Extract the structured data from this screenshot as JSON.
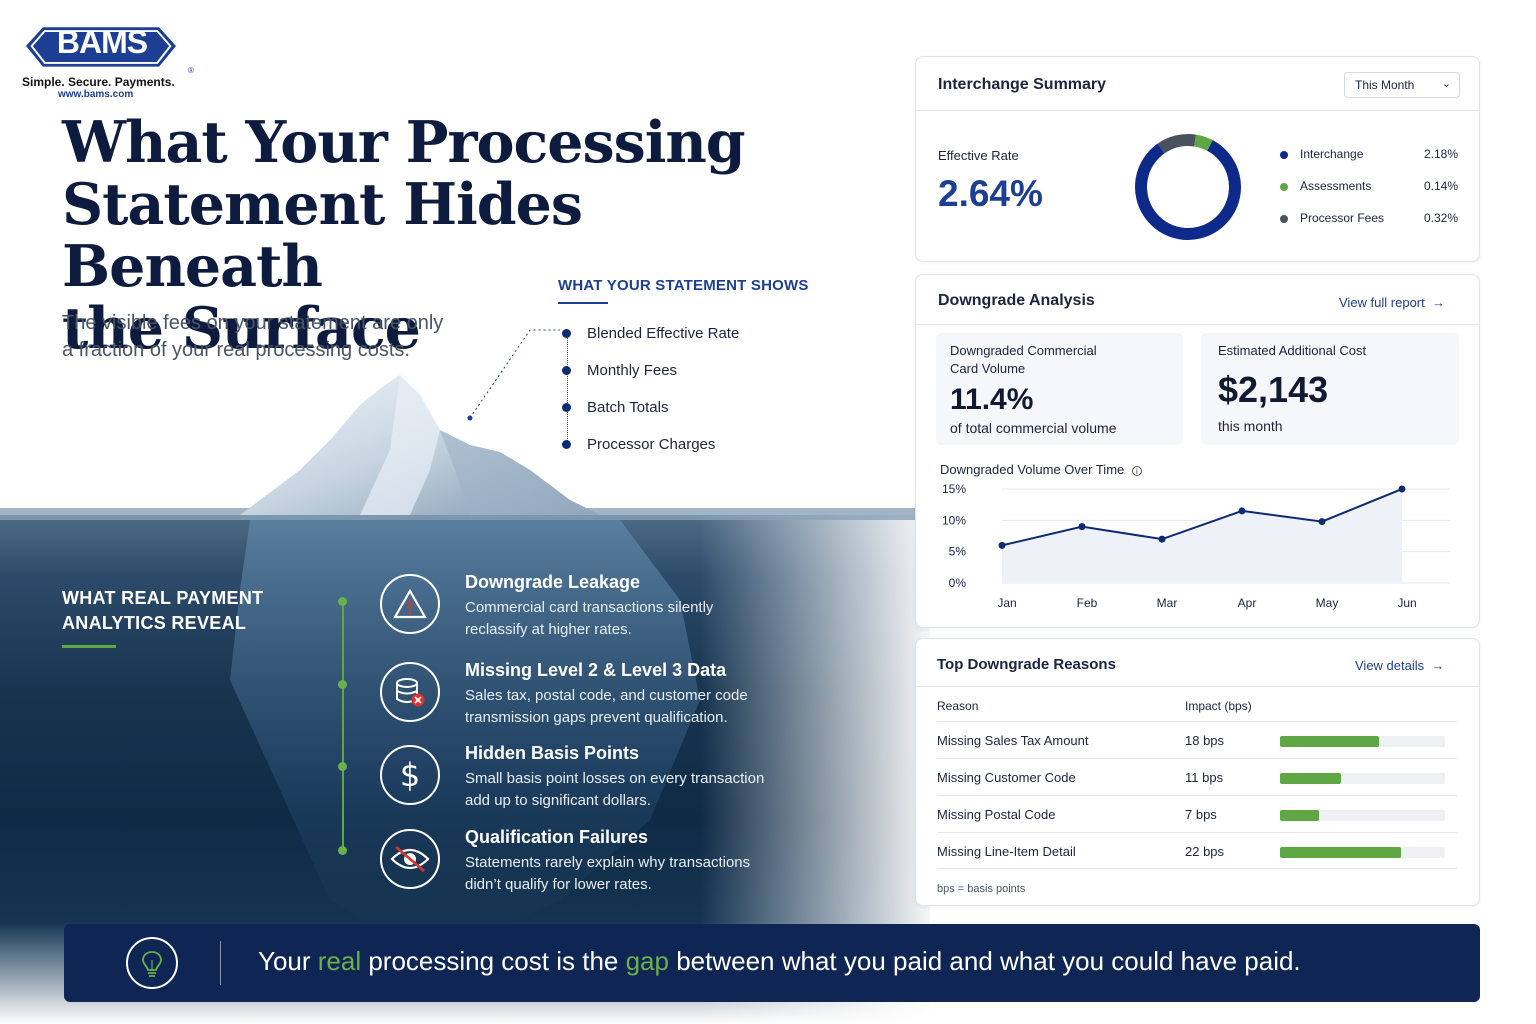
{
  "brand": {
    "logo_text": "BAMS",
    "tagline": "Simple. Secure. Payments.",
    "url": "www.bams.com",
    "registered": "®"
  },
  "headline": {
    "line1": "What Your Processing",
    "line2": "Statement Hides Beneath",
    "line3": "the Surface",
    "subhead_line1": "The visible fees on your statement are only",
    "subhead_line2": "a fraction of your real processing costs."
  },
  "statement_shows": {
    "title": "WHAT YOUR STATEMENT SHOWS",
    "items": [
      "Blended Effective Rate",
      "Monthly Fees",
      "Batch Totals",
      "Processor Charges"
    ]
  },
  "analytics_reveal": {
    "title_line1": "WHAT REAL PAYMENT",
    "title_line2": "ANALYTICS REVEAL",
    "items": [
      {
        "icon": "warning-icon",
        "title": "Downgrade Leakage",
        "desc_line1": "Commercial card transactions silently",
        "desc_line2": "reclassify at higher rates."
      },
      {
        "icon": "database-error-icon",
        "title": "Missing Level 2 & Level 3 Data",
        "desc_line1": "Sales tax, postal code, and customer code",
        "desc_line2": "transmission gaps prevent qualification."
      },
      {
        "icon": "dollar-icon",
        "title": "Hidden Basis Points",
        "desc_line1": "Small basis point losses on every transaction",
        "desc_line2": "add up to significant dollars."
      },
      {
        "icon": "eye-off-icon",
        "title": "Qualification Failures",
        "desc_line1": "Statements rarely explain why transactions",
        "desc_line2": "didn’t qualify for lower rates."
      }
    ]
  },
  "banner": {
    "icon": "lightbulb-icon",
    "part1": "Your ",
    "hl1": "real",
    "part2": " processing cost is the ",
    "hl2": "gap",
    "part3": " between what you paid and what you could have paid."
  },
  "interchange": {
    "title": "Interchange Summary",
    "period": "This Month",
    "effective_label": "Effective Rate",
    "effective_value": "2.64%",
    "legend": [
      {
        "label": "Interchange",
        "value": "2.18%",
        "color": "#0d2a8a",
        "share": 2.18
      },
      {
        "label": "Assessments",
        "value": "0.14%",
        "color": "#5fa744",
        "share": 0.14
      },
      {
        "label": "Processor Fees",
        "value": "0.32%",
        "color": "#4a5060",
        "share": 0.32
      }
    ]
  },
  "downgrade": {
    "title": "Downgrade Analysis",
    "link": "View full report",
    "volume_label_line1": "Downgraded Commercial",
    "volume_label_line2": "Card Volume",
    "volume_value": "11.4%",
    "volume_sub": "of total commercial volume",
    "cost_label": "Estimated Additional Cost",
    "cost_value": "$2,143",
    "cost_sub": "this month",
    "chart_title": "Downgraded Volume Over Time",
    "chart_info_icon": "info-icon"
  },
  "chart_data": {
    "type": "area",
    "title": "Downgraded Volume Over Time",
    "categories": [
      "Jan",
      "Feb",
      "Mar",
      "Apr",
      "May",
      "Jun"
    ],
    "values": [
      6,
      9,
      7,
      11.5,
      9.8,
      15
    ],
    "ylim": [
      0,
      15
    ],
    "yticks": [
      "0%",
      "5%",
      "10%",
      "15%"
    ],
    "ytick_values": [
      0,
      5,
      10,
      15
    ],
    "grid": true,
    "color": "#0d2a73"
  },
  "reasons": {
    "title": "Top Downgrade Reasons",
    "link": "View details",
    "col_reason": "Reason",
    "col_impact": "Impact (bps)",
    "rows": [
      {
        "reason": "Missing Sales Tax Amount",
        "impact": "18 bps",
        "bps": 18
      },
      {
        "reason": "Missing Customer Code",
        "impact": "11 bps",
        "bps": 11
      },
      {
        "reason": "Missing Postal Code",
        "impact": "7 bps",
        "bps": 7
      },
      {
        "reason": "Missing Line-Item Detail",
        "impact": "22 bps",
        "bps": 22
      }
    ],
    "max_bps": 30,
    "footnote": "bps = basis points"
  }
}
